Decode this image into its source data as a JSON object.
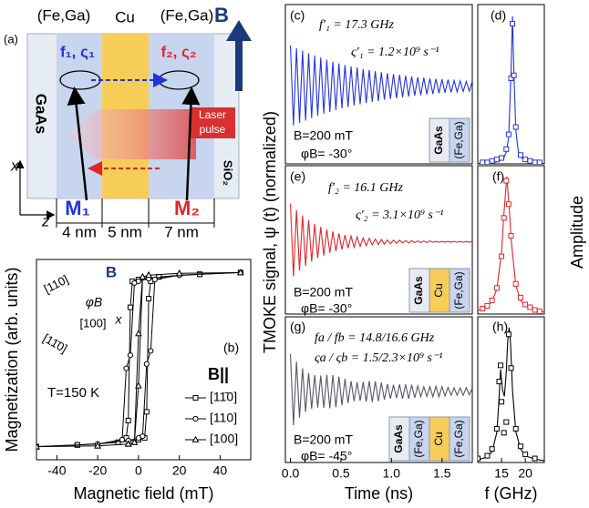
{
  "diagram": {
    "panel": "(a)",
    "top_labels": [
      "(Fe,Ga)",
      "Cu",
      "(Fe,Ga)"
    ],
    "field": "B",
    "mode_left": "f₁, ς₁",
    "mode_right": "f₂, ς₂",
    "substrate": "GaAs",
    "laser": [
      "Laser",
      "pulse"
    ],
    "cap": "SiO₂",
    "m_left": "M₁",
    "m_right": "M₂",
    "axis_x": "x",
    "axis_z": "z",
    "thicknesses": [
      "4 nm",
      "5 nm",
      "7 nm"
    ]
  },
  "chart_data": [
    {
      "type": "line",
      "panel": "(b)",
      "xlabel": "Magnetic field (mT)",
      "ylabel": "Magnetization (arb. units)",
      "xlim": [
        -50,
        55
      ],
      "xticks": [
        -40,
        -20,
        0,
        20,
        40
      ],
      "ylim": [
        -1.15,
        1.15
      ],
      "legend_title": "B||",
      "temperature": "T=150 K",
      "inset_labels": [
        "[110]",
        "[100]",
        "[11̄0]",
        "B",
        "φB",
        "x"
      ],
      "series": [
        {
          "name": "[11̄0]",
          "marker": "square",
          "color": "#000000",
          "x": [
            -50,
            -30,
            -10,
            0,
            3,
            4,
            5,
            6,
            10,
            30,
            50,
            30,
            10,
            0,
            -3,
            -4,
            -5,
            -6,
            -10,
            -30,
            -50
          ],
          "values": [
            -1,
            -0.98,
            -0.95,
            -0.92,
            -0.9,
            -0.6,
            0.7,
            0.9,
            0.95,
            0.98,
            1,
            0.98,
            0.95,
            0.92,
            0.9,
            0.6,
            -0.7,
            -0.9,
            -0.95,
            -0.98,
            -1
          ]
        },
        {
          "name": "[110]",
          "marker": "circle",
          "color": "#000000",
          "x": [
            -50,
            -20,
            -5,
            0,
            2,
            4,
            6,
            8,
            20,
            50,
            20,
            5,
            0,
            -2,
            -4,
            -6,
            -8,
            -20,
            -50
          ],
          "values": [
            -1,
            -0.97,
            -0.93,
            -0.9,
            -0.88,
            -0.05,
            0.1,
            0.92,
            0.97,
            1,
            0.97,
            0.93,
            0.9,
            0.88,
            0.05,
            -0.1,
            -0.92,
            -0.97,
            -1
          ]
        },
        {
          "name": "[100]",
          "marker": "triangle",
          "color": "#000000",
          "x": [
            -50,
            -20,
            -5,
            -2,
            0,
            2,
            5,
            20,
            50,
            20,
            5,
            2,
            0,
            -2,
            -5,
            -20,
            -50
          ],
          "values": [
            -1,
            -0.99,
            -0.97,
            -0.95,
            -0.3,
            0.95,
            0.97,
            0.99,
            1,
            0.99,
            0.97,
            0.95,
            0.3,
            -0.95,
            -0.97,
            -0.99,
            -1
          ]
        }
      ]
    },
    {
      "type": "line",
      "panel": "(c)",
      "ylabel": "TMOKE signal, ψ (t) (normalized)",
      "xlim": [
        -0.05,
        1.8
      ],
      "ylim": [
        -1.9,
        2.0
      ],
      "annotations": [
        "f′₁ = 17.3 GHz",
        "ς′₁ = 1.2×10⁹ s⁻¹",
        "B=200 mT",
        "φB= -30°"
      ],
      "stack": [
        "GaAs",
        "(Fe,Ga)"
      ],
      "series": [
        {
          "color": "#2233dd",
          "marker": "none",
          "x": [
            0,
            0.03,
            0.06,
            0.09,
            0.12,
            0.15,
            0.18,
            0.21,
            0.24,
            0.27,
            0.3,
            0.33,
            0.36,
            0.39,
            0.42,
            0.45,
            0.48,
            0.51,
            0.54,
            0.57,
            0.6,
            0.63,
            0.66,
            0.69,
            0.72,
            0.75,
            0.78,
            0.81,
            0.84,
            0.87,
            0.9,
            0.93,
            0.96,
            0.99,
            1.02,
            1.05,
            1.08,
            1.11,
            1.14,
            1.17,
            1.2,
            1.23,
            1.26,
            1.29,
            1.32,
            1.35,
            1.38,
            1.41,
            1.44,
            1.47,
            1.5,
            1.53,
            1.56,
            1.59,
            1.62,
            1.65,
            1.68,
            1.71,
            1.74,
            1.77,
            1.8
          ],
          "values": [
            1.0,
            -0.96,
            0.93,
            -0.9,
            0.87,
            -0.84,
            0.81,
            -0.78,
            0.75,
            -0.72,
            0.7,
            -0.67,
            0.65,
            -0.63,
            0.6,
            -0.58,
            0.56,
            -0.54,
            0.52,
            -0.51,
            0.49,
            -0.47,
            0.46,
            -0.44,
            0.42,
            -0.41,
            0.4,
            -0.38,
            0.37,
            -0.36,
            0.34,
            -0.33,
            0.32,
            -0.31,
            0.3,
            -0.29,
            0.28,
            -0.27,
            0.26,
            -0.25,
            0.24,
            -0.23,
            0.22,
            -0.22,
            0.21,
            -0.2,
            0.19,
            -0.19,
            0.18,
            -0.17,
            0.17,
            -0.16,
            0.16,
            -0.15,
            0.14,
            -0.14,
            0.13,
            -0.13,
            0.12,
            -0.12,
            0.12
          ]
        }
      ]
    },
    {
      "type": "line",
      "panel": "(d)",
      "xlim": [
        10,
        24
      ],
      "ylim": [
        0,
        1.08
      ],
      "series": [
        {
          "color": "#2233dd",
          "marker": "none",
          "x": [
            10,
            12,
            13,
            14,
            15,
            15.5,
            16,
            16.5,
            17,
            17.3,
            17.6,
            18,
            18.5,
            19,
            20,
            21,
            22,
            24
          ],
          "values": [
            0.003,
            0.005,
            0.008,
            0.013,
            0.027,
            0.043,
            0.079,
            0.18,
            0.62,
            1,
            0.62,
            0.23,
            0.09,
            0.048,
            0.019,
            0.01,
            0.007,
            0.003
          ]
        },
        {
          "color": "#2233dd",
          "marker": "square",
          "x": [
            11,
            12,
            13,
            14,
            15,
            16,
            16.5,
            17,
            17.3,
            17.6,
            18,
            19,
            20,
            21,
            22,
            23
          ],
          "values": [
            0.01,
            0.01,
            0.02,
            0.03,
            0.04,
            0.1,
            0.2,
            0.58,
            0.95,
            0.6,
            0.25,
            0.06,
            0.03,
            0.02,
            0.01,
            0.01
          ]
        }
      ]
    },
    {
      "type": "line",
      "panel": "(e)",
      "xlim": [
        -0.05,
        1.8
      ],
      "ylim": [
        -1.9,
        2.0
      ],
      "annotations": [
        "f′₂ = 16.1 GHz",
        "ς′₂ = 3.1×10⁹ s⁻¹",
        "B=200 mT",
        "φB= -30°"
      ],
      "stack": [
        "GaAs",
        "Cu",
        "(Fe,Ga)"
      ],
      "series": [
        {
          "color": "#e0242a",
          "marker": "none",
          "x": [
            0,
            0.03,
            0.06,
            0.09,
            0.12,
            0.15,
            0.18,
            0.21,
            0.24,
            0.27,
            0.3,
            0.33,
            0.36,
            0.39,
            0.42,
            0.45,
            0.48,
            0.51,
            0.54,
            0.57,
            0.6,
            0.63,
            0.66,
            0.69,
            0.72,
            0.75,
            0.78,
            0.81,
            0.84,
            0.87,
            0.9,
            0.93,
            0.96,
            0.99,
            1.02,
            1.05,
            1.08,
            1.11,
            1.14,
            1.17,
            1.2,
            1.23,
            1.26,
            1.29,
            1.32,
            1.35,
            1.38,
            1.41,
            1.44,
            1.47,
            1.5,
            1.53,
            1.56,
            1.59,
            1.62,
            1.65,
            1.68,
            1.71,
            1.74,
            1.77,
            1.8
          ],
          "values": [
            1.0,
            -0.91,
            0.83,
            -0.75,
            0.69,
            -0.63,
            0.57,
            -0.52,
            0.47,
            -0.43,
            0.39,
            -0.36,
            0.32,
            -0.29,
            0.27,
            -0.24,
            0.22,
            -0.2,
            0.18,
            -0.17,
            0.15,
            -0.14,
            0.13,
            -0.12,
            0.1,
            -0.1,
            0.09,
            -0.08,
            0.07,
            -0.07,
            0.06,
            -0.06,
            0.05,
            -0.05,
            0.04,
            -0.04,
            0.04,
            -0.03,
            0.03,
            -0.03,
            0.03,
            -0.02,
            0.02,
            -0.02,
            0.02,
            -0.02,
            0.02,
            -0.01,
            0.01,
            -0.01,
            0.01,
            -0.01,
            0.01,
            -0.01,
            0.01,
            -0.01,
            0.01,
            -0.01,
            0.01,
            -0.01,
            0.01
          ]
        }
      ]
    },
    {
      "type": "line",
      "panel": "(f)",
      "ylabel": "Amplitude",
      "xlim": [
        10,
        24
      ],
      "ylim": [
        0,
        1.08
      ],
      "series": [
        {
          "color": "#e0242a",
          "marker": "none",
          "x": [
            10,
            12,
            13,
            14,
            15,
            15.5,
            16.1,
            16.7,
            17,
            18,
            19,
            20,
            22,
            24
          ],
          "values": [
            0.026,
            0.055,
            0.093,
            0.18,
            0.45,
            0.73,
            1,
            0.73,
            0.55,
            0.21,
            0.1,
            0.06,
            0.027,
            0.015
          ]
        },
        {
          "color": "#e0242a",
          "marker": "square",
          "x": [
            11,
            12,
            13,
            14,
            15,
            15.5,
            16,
            16.5,
            17,
            18,
            19,
            20,
            21,
            22,
            23
          ],
          "values": [
            0.04,
            0.06,
            0.1,
            0.19,
            0.42,
            0.7,
            0.97,
            0.8,
            0.57,
            0.22,
            0.12,
            0.07,
            0.05,
            0.03,
            0.02
          ]
        }
      ]
    },
    {
      "type": "line",
      "panel": "(g)",
      "xlabel": "Time (ns)",
      "xlim": [
        -0.05,
        1.8
      ],
      "xticks": [
        {
          "value": 0,
          "label": "0.0"
        },
        0.5,
        {
          "value": 1,
          "label": "1.0"
        },
        1.5
      ],
      "ylim": [
        -1.9,
        2.0
      ],
      "annotations": [
        "fa / fb = 14.8/16.6 GHz",
        "ςa / ςb = 1.5/2.3×10⁹ s⁻¹",
        "B=200 mT",
        "φB= -45°"
      ],
      "stack": [
        "GaAs",
        "(Fe,Ga)",
        "Cu",
        "(Fe,Ga)"
      ],
      "series": [
        {
          "color": "#555566",
          "marker": "none",
          "x": [
            0,
            0.03,
            0.06,
            0.09,
            0.12,
            0.15,
            0.18,
            0.21,
            0.24,
            0.27,
            0.3,
            0.33,
            0.36,
            0.39,
            0.42,
            0.45,
            0.48,
            0.51,
            0.54,
            0.57,
            0.6,
            0.63,
            0.66,
            0.69,
            0.72,
            0.75,
            0.78,
            0.81,
            0.84,
            0.87,
            0.9,
            0.93,
            0.96,
            0.99,
            1.02,
            1.05,
            1.08,
            1.11,
            1.14,
            1.17,
            1.2,
            1.23,
            1.26,
            1.29,
            1.32,
            1.35,
            1.38,
            1.41,
            1.44,
            1.47,
            1.5,
            1.53,
            1.56,
            1.59,
            1.62,
            1.65,
            1.68,
            1.71,
            1.74,
            1.77,
            1.8
          ],
          "values": [
            1.0,
            -0.9,
            0.8,
            -0.7,
            0.62,
            -0.55,
            0.5,
            -0.46,
            0.44,
            -0.43,
            0.43,
            -0.44,
            0.45,
            -0.45,
            0.44,
            -0.42,
            0.4,
            -0.37,
            0.34,
            -0.31,
            0.28,
            -0.26,
            0.25,
            -0.25,
            0.26,
            -0.27,
            0.28,
            -0.28,
            0.27,
            -0.26,
            0.24,
            -0.22,
            0.2,
            -0.19,
            0.18,
            -0.18,
            0.19,
            -0.19,
            0.19,
            -0.19,
            0.18,
            -0.17,
            0.15,
            -0.14,
            0.13,
            -0.13,
            0.13,
            -0.14,
            0.14,
            -0.14,
            0.13,
            -0.12,
            0.11,
            -0.1,
            0.1,
            -0.1,
            0.1,
            -0.1,
            0.1,
            -0.09,
            0.09
          ]
        }
      ]
    },
    {
      "type": "line",
      "panel": "(h)",
      "xlabel": "f (GHz)",
      "xlim": [
        10,
        24
      ],
      "xticks": [
        15,
        20
      ],
      "ylim": [
        0,
        1.08
      ],
      "series": [
        {
          "color": "#000000",
          "marker": "none",
          "x": [
            10,
            12,
            13,
            14,
            14.4,
            14.8,
            15.2,
            15.6,
            16,
            16.3,
            16.6,
            16.9,
            17.3,
            18,
            19,
            20,
            22,
            24
          ],
          "values": [
            0.02,
            0.04,
            0.08,
            0.22,
            0.43,
            0.69,
            0.54,
            0.49,
            0.67,
            0.9,
            1,
            0.88,
            0.54,
            0.23,
            0.1,
            0.05,
            0.025,
            0.013
          ]
        },
        {
          "color": "#000000",
          "marker": "square",
          "x": [
            10,
            12,
            13,
            14,
            14.5,
            14.8,
            15,
            15.5,
            16,
            16.5,
            17,
            18,
            19,
            20,
            22
          ],
          "values": [
            0.03,
            0.05,
            0.1,
            0.25,
            0.6,
            0.72,
            0.45,
            0.22,
            0.3,
            0.95,
            0.7,
            0.25,
            0.12,
            0.06,
            0.03
          ]
        }
      ]
    }
  ]
}
